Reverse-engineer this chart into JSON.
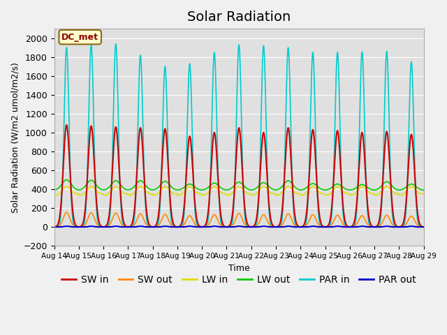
{
  "title": "Solar Radiation",
  "ylabel": "Solar Radiation (W/m2 umol/m2/s)",
  "xlabel": "Time",
  "ylim": [
    -200,
    2100
  ],
  "yticks": [
    -200,
    0,
    200,
    400,
    600,
    800,
    1000,
    1200,
    1400,
    1600,
    1800,
    2000
  ],
  "start_day": 14,
  "end_day": 29,
  "n_days": 15,
  "points_per_day": 144,
  "label_text": "DC_met",
  "series": {
    "SW_in": {
      "color": "#cc0000",
      "label": "SW in"
    },
    "SW_out": {
      "color": "#ff8800",
      "label": "SW out"
    },
    "LW_in": {
      "color": "#dddd00",
      "label": "LW in"
    },
    "LW_out": {
      "color": "#00cc00",
      "label": "LW out"
    },
    "PAR_in": {
      "color": "#00cccc",
      "label": "PAR in"
    },
    "PAR_out": {
      "color": "#0000cc",
      "label": "PAR out"
    }
  },
  "sw_in_peaks": [
    1080,
    1070,
    1060,
    1050,
    1040,
    960,
    1000,
    1050,
    1000,
    1050,
    1030,
    1020,
    1000,
    1010,
    980
  ],
  "sw_out_peaks": [
    155,
    150,
    148,
    140,
    135,
    120,
    130,
    145,
    130,
    140,
    130,
    125,
    120,
    125,
    115
  ],
  "lw_out_peaks": [
    500,
    495,
    490,
    490,
    485,
    455,
    465,
    475,
    470,
    490,
    460,
    455,
    450,
    480,
    455
  ],
  "par_in_peaks": [
    1900,
    1930,
    1940,
    1820,
    1700,
    1730,
    1850,
    1930,
    1920,
    1900,
    1850,
    1850,
    1855,
    1860,
    1750
  ],
  "background_color": "#e0e0e0",
  "grid_color": "#ffffff",
  "title_fontsize": 14,
  "legend_fontsize": 10
}
